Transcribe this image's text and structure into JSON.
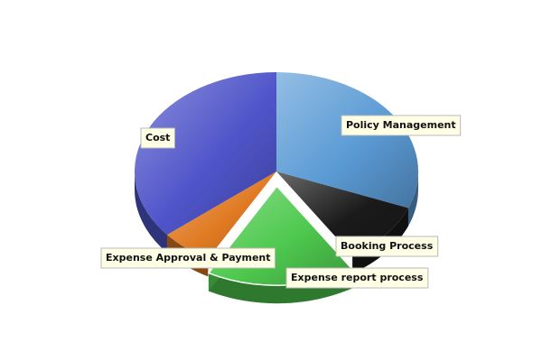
{
  "chart_data": {
    "type": "pie",
    "style": "3d-exploded",
    "slices": [
      {
        "label": "Policy Management",
        "value": 31,
        "color": "#5b9bd5",
        "exploded": false
      },
      {
        "label": "Booking Process",
        "value": 10,
        "color": "#1a1a1a",
        "exploded": false
      },
      {
        "label": "Expense report process",
        "value": 17,
        "color": "#4ec94e",
        "exploded": true
      },
      {
        "label": "Expense Approval & Payment",
        "value": 6,
        "color": "#e07a22",
        "exploded": false
      },
      {
        "label": "Cost",
        "value": 36,
        "color": "#4f55c9",
        "exploded": false
      }
    ]
  }
}
